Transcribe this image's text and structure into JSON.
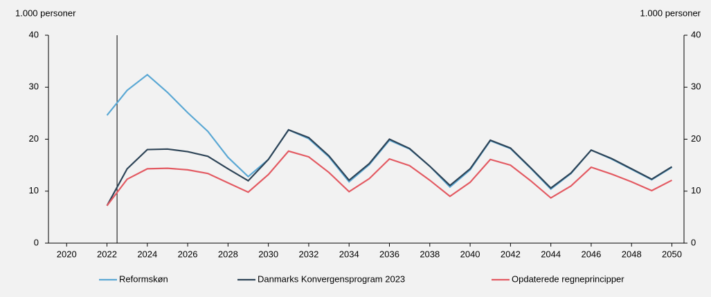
{
  "chart_data": {
    "type": "line",
    "y_label": "1.000 personer",
    "y2_label": "1.000 personer",
    "x": [
      2022,
      2023,
      2024,
      2025,
      2026,
      2027,
      2028,
      2029,
      2030,
      2031,
      2032,
      2033,
      2034,
      2035,
      2036,
      2037,
      2038,
      2039,
      2040,
      2041,
      2042,
      2043,
      2044,
      2045,
      2046,
      2047,
      2048,
      2049,
      2050
    ],
    "series": [
      {
        "name": "Reformskøn",
        "color": "#5ba8d4",
        "values": [
          24.6,
          29.4,
          32.4,
          29,
          25.1,
          21.5,
          16.5,
          12.8,
          16.1,
          21.8,
          20.1,
          16.6,
          11.8,
          15.1,
          19.8,
          18.1,
          14.8,
          10.8,
          14.1,
          19.7,
          18.2,
          14.4,
          10.4,
          13.4,
          17.9,
          16.2,
          14.2,
          12.2,
          14.6
        ]
      },
      {
        "name": "Danmarks Konvergensprogram 2023",
        "color": "#2e4457",
        "values": [
          7.2,
          14.3,
          18,
          18.1,
          17.6,
          16.7,
          14.3,
          12,
          16.1,
          21.8,
          20.3,
          16.8,
          12.1,
          15.3,
          20,
          18.2,
          14.8,
          11.1,
          14.3,
          19.8,
          18.3,
          14.5,
          10.6,
          13.5,
          17.9,
          16.3,
          14.3,
          12.3,
          14.7
        ]
      },
      {
        "name": "Opdaterede regneprincipper",
        "color": "#e35a62",
        "values": [
          7.2,
          12.3,
          14.3,
          14.4,
          14.1,
          13.4,
          11.6,
          9.8,
          13.2,
          17.7,
          16.6,
          13.6,
          9.9,
          12.4,
          16.2,
          14.9,
          12.1,
          9,
          11.7,
          16.1,
          15,
          12,
          8.7,
          11,
          14.6,
          13.3,
          11.8,
          10.1,
          12.1
        ]
      }
    ],
    "xlim": [
      2019.1,
      2050.6
    ],
    "xticks": [
      2020,
      2022,
      2024,
      2026,
      2028,
      2030,
      2032,
      2034,
      2036,
      2038,
      2040,
      2042,
      2044,
      2046,
      2048,
      2050
    ],
    "ylim": [
      0,
      40
    ],
    "yticks": [
      0,
      10,
      20,
      30,
      40
    ],
    "y2lim": [
      0,
      40
    ],
    "y2ticks": [
      0,
      10,
      20,
      30,
      40
    ],
    "vline": 2022.5,
    "legend": "bottom"
  }
}
